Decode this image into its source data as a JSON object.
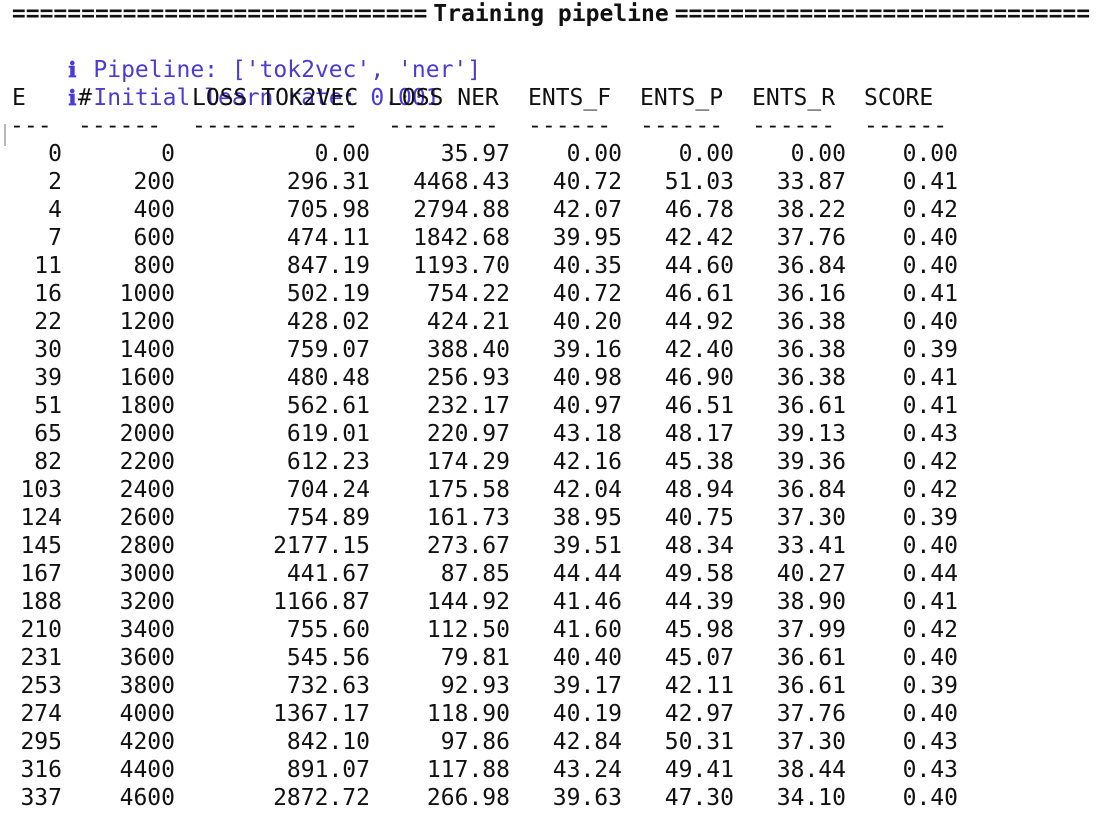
{
  "banner": {
    "title": "Training pipeline",
    "rule": "=============================="
  },
  "info_lines": [
    {
      "icon": "ℹ",
      "text": "Pipeline: ['tok2vec', 'ner']"
    },
    {
      "icon": "ℹ",
      "text": "Initial learn rate: 0.001"
    }
  ],
  "headers": [
    "E",
    "#",
    "LOSS TOK2VEC",
    "LOSS NER",
    "ENTS_F",
    "ENTS_P",
    "ENTS_R",
    "SCORE"
  ],
  "separators": [
    "---",
    "------",
    "------------",
    "--------",
    "------",
    "------",
    "------",
    "------"
  ],
  "rows": [
    [
      "0",
      "0",
      "0.00",
      "35.97",
      "0.00",
      "0.00",
      "0.00",
      "0.00"
    ],
    [
      "2",
      "200",
      "296.31",
      "4468.43",
      "40.72",
      "51.03",
      "33.87",
      "0.41"
    ],
    [
      "4",
      "400",
      "705.98",
      "2794.88",
      "42.07",
      "46.78",
      "38.22",
      "0.42"
    ],
    [
      "7",
      "600",
      "474.11",
      "1842.68",
      "39.95",
      "42.42",
      "37.76",
      "0.40"
    ],
    [
      "11",
      "800",
      "847.19",
      "1193.70",
      "40.35",
      "44.60",
      "36.84",
      "0.40"
    ],
    [
      "16",
      "1000",
      "502.19",
      "754.22",
      "40.72",
      "46.61",
      "36.16",
      "0.41"
    ],
    [
      "22",
      "1200",
      "428.02",
      "424.21",
      "40.20",
      "44.92",
      "36.38",
      "0.40"
    ],
    [
      "30",
      "1400",
      "759.07",
      "388.40",
      "39.16",
      "42.40",
      "36.38",
      "0.39"
    ],
    [
      "39",
      "1600",
      "480.48",
      "256.93",
      "40.98",
      "46.90",
      "36.38",
      "0.41"
    ],
    [
      "51",
      "1800",
      "562.61",
      "232.17",
      "40.97",
      "46.51",
      "36.61",
      "0.41"
    ],
    [
      "65",
      "2000",
      "619.01",
      "220.97",
      "43.18",
      "48.17",
      "39.13",
      "0.43"
    ],
    [
      "82",
      "2200",
      "612.23",
      "174.29",
      "42.16",
      "45.38",
      "39.36",
      "0.42"
    ],
    [
      "103",
      "2400",
      "704.24",
      "175.58",
      "42.04",
      "48.94",
      "36.84",
      "0.42"
    ],
    [
      "124",
      "2600",
      "754.89",
      "161.73",
      "38.95",
      "40.75",
      "37.30",
      "0.39"
    ],
    [
      "145",
      "2800",
      "2177.15",
      "273.67",
      "39.51",
      "48.34",
      "33.41",
      "0.40"
    ],
    [
      "167",
      "3000",
      "441.67",
      "87.85",
      "44.44",
      "49.58",
      "40.27",
      "0.44"
    ],
    [
      "188",
      "3200",
      "1166.87",
      "144.92",
      "41.46",
      "44.39",
      "38.90",
      "0.41"
    ],
    [
      "210",
      "3400",
      "755.60",
      "112.50",
      "41.60",
      "45.98",
      "37.99",
      "0.42"
    ],
    [
      "231",
      "3600",
      "545.56",
      "79.81",
      "40.40",
      "45.07",
      "36.61",
      "0.40"
    ],
    [
      "253",
      "3800",
      "732.63",
      "92.93",
      "39.17",
      "42.11",
      "36.61",
      "0.39"
    ],
    [
      "274",
      "4000",
      "1367.17",
      "118.90",
      "40.19",
      "42.97",
      "37.76",
      "0.40"
    ],
    [
      "295",
      "4200",
      "842.10",
      "97.86",
      "42.84",
      "50.31",
      "37.30",
      "0.43"
    ],
    [
      "316",
      "4400",
      "891.07",
      "117.88",
      "43.24",
      "49.41",
      "38.44",
      "0.43"
    ],
    [
      "337",
      "4600",
      "2872.72",
      "266.98",
      "39.63",
      "47.30",
      "34.10",
      "0.40"
    ]
  ],
  "colors": {
    "info": "#4b3bd6",
    "text": "#111111",
    "background": "#ffffff"
  }
}
